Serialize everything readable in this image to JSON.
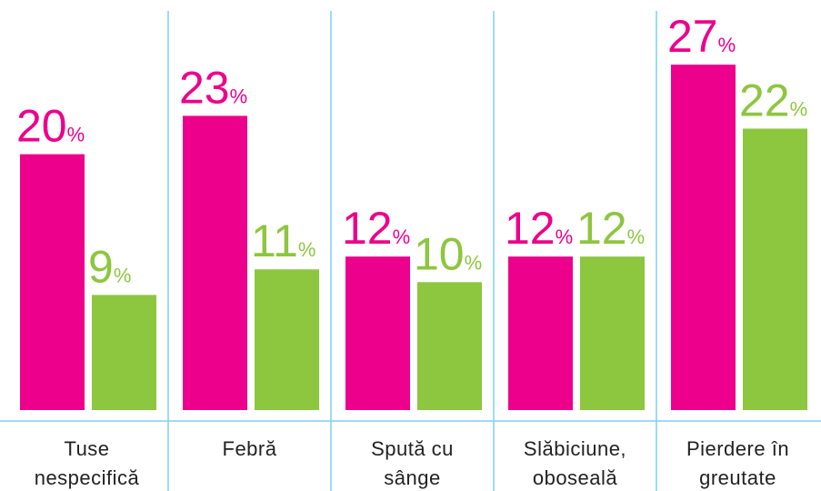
{
  "chart_data": {
    "type": "bar",
    "categories": [
      "Tuse\nnespecifică",
      "Febră",
      "Spută cu\nsânge",
      "Slăbiciune,\noboseală",
      "Pierdere în\ngreutate"
    ],
    "series": [
      {
        "color": "#ec008c",
        "values": [
          20,
          23,
          12,
          12,
          27
        ],
        "value_labels": [
          "20%",
          "23%",
          "12%",
          "12%",
          "27%"
        ]
      },
      {
        "color": "#8dc63f",
        "values": [
          9,
          11,
          10,
          12,
          22
        ],
        "value_labels": [
          "9%",
          "11%",
          "10%",
          "12%",
          "22%"
        ]
      }
    ]
  }
}
